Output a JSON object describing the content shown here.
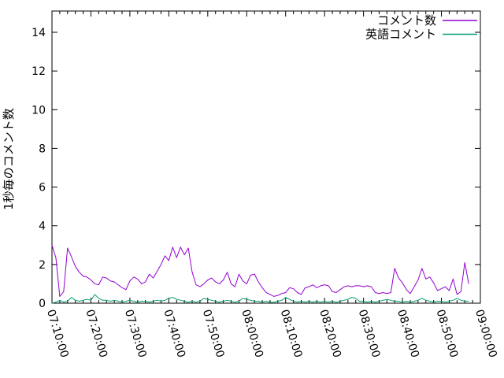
{
  "chart": {
    "background_color": "#ffffff",
    "border_color": "#000000",
    "legend_position": "top-right-inside"
  },
  "chart_data": {
    "type": "line",
    "title": "",
    "xlabel": "",
    "ylabel": "1秒毎のコメント数",
    "x_unit": "minutes since 07:10:00, one point per minute",
    "x_range_labels": [
      "07:10:00",
      "09:00:00"
    ],
    "x_range_minutes": [
      0,
      110
    ],
    "ylim": [
      0,
      15.1
    ],
    "yticks": [
      0,
      2,
      4,
      6,
      8,
      10,
      12,
      14
    ],
    "xtick_labels": [
      "07:10:00",
      "07:20:00",
      "07:30:00",
      "07:40:00",
      "07:50:00",
      "08:00:00",
      "08:10:00",
      "08:20:00",
      "08:30:00",
      "08:40:00",
      "08:50:00",
      "09:00:00"
    ],
    "xtick_minor_interval_minutes": 2,
    "grid": false,
    "series": [
      {
        "name": "コメント数",
        "color": "#9400d3",
        "start_minute": 0,
        "values": [
          3.0,
          2.35,
          0.35,
          0.6,
          2.85,
          2.4,
          1.9,
          1.6,
          1.4,
          1.35,
          1.2,
          1.0,
          0.95,
          1.35,
          1.3,
          1.15,
          1.1,
          0.95,
          0.8,
          0.7,
          1.15,
          1.35,
          1.25,
          1.0,
          1.1,
          1.5,
          1.3,
          1.65,
          2.0,
          2.45,
          2.2,
          2.9,
          2.35,
          2.9,
          2.5,
          2.85,
          1.6,
          0.95,
          0.85,
          1.0,
          1.2,
          1.3,
          1.1,
          1.0,
          1.2,
          1.6,
          1.0,
          0.85,
          1.5,
          1.15,
          1.0,
          1.45,
          1.5,
          1.1,
          0.8,
          0.55,
          0.45,
          0.35,
          0.4,
          0.5,
          0.55,
          0.8,
          0.75,
          0.55,
          0.45,
          0.8,
          0.85,
          0.95,
          0.8,
          0.9,
          0.95,
          0.9,
          0.6,
          0.55,
          0.7,
          0.85,
          0.9,
          0.85,
          0.9,
          0.9,
          0.85,
          0.9,
          0.85,
          0.55,
          0.5,
          0.55,
          0.5,
          0.55,
          1.8,
          1.3,
          1.05,
          0.7,
          0.5,
          0.85,
          1.2,
          1.8,
          1.25,
          1.35,
          1.05,
          0.65,
          0.75,
          0.85,
          0.65,
          1.25,
          0.45,
          0.6,
          2.1,
          1.0
        ]
      },
      {
        "name": "英語コメント",
        "color": "#009e73",
        "start_minute": 0,
        "values": [
          0.0,
          0.05,
          0.15,
          0.05,
          0.1,
          0.3,
          0.15,
          0.1,
          0.15,
          0.2,
          0.15,
          0.45,
          0.25,
          0.15,
          0.15,
          0.1,
          0.15,
          0.1,
          0.05,
          0.1,
          0.15,
          0.1,
          0.05,
          0.1,
          0.1,
          0.05,
          0.1,
          0.15,
          0.1,
          0.15,
          0.25,
          0.3,
          0.2,
          0.15,
          0.1,
          0.05,
          0.1,
          0.05,
          0.1,
          0.25,
          0.2,
          0.15,
          0.1,
          0.05,
          0.1,
          0.15,
          0.1,
          0.05,
          0.1,
          0.25,
          0.2,
          0.15,
          0.1,
          0.1,
          0.05,
          0.1,
          0.05,
          0.05,
          0.1,
          0.15,
          0.3,
          0.2,
          0.1,
          0.05,
          0.1,
          0.05,
          0.1,
          0.05,
          0.1,
          0.05,
          0.1,
          0.05,
          0.1,
          0.05,
          0.1,
          0.15,
          0.2,
          0.3,
          0.25,
          0.1,
          0.1,
          0.05,
          0.1,
          0.05,
          0.1,
          0.15,
          0.2,
          0.15,
          0.1,
          0.1,
          0.05,
          0.1,
          0.05,
          0.1,
          0.15,
          0.25,
          0.15,
          0.1,
          0.05,
          0.1,
          0.1,
          0.05,
          0.1,
          0.15,
          0.25,
          0.15,
          0.1,
          0.1
        ]
      }
    ]
  }
}
